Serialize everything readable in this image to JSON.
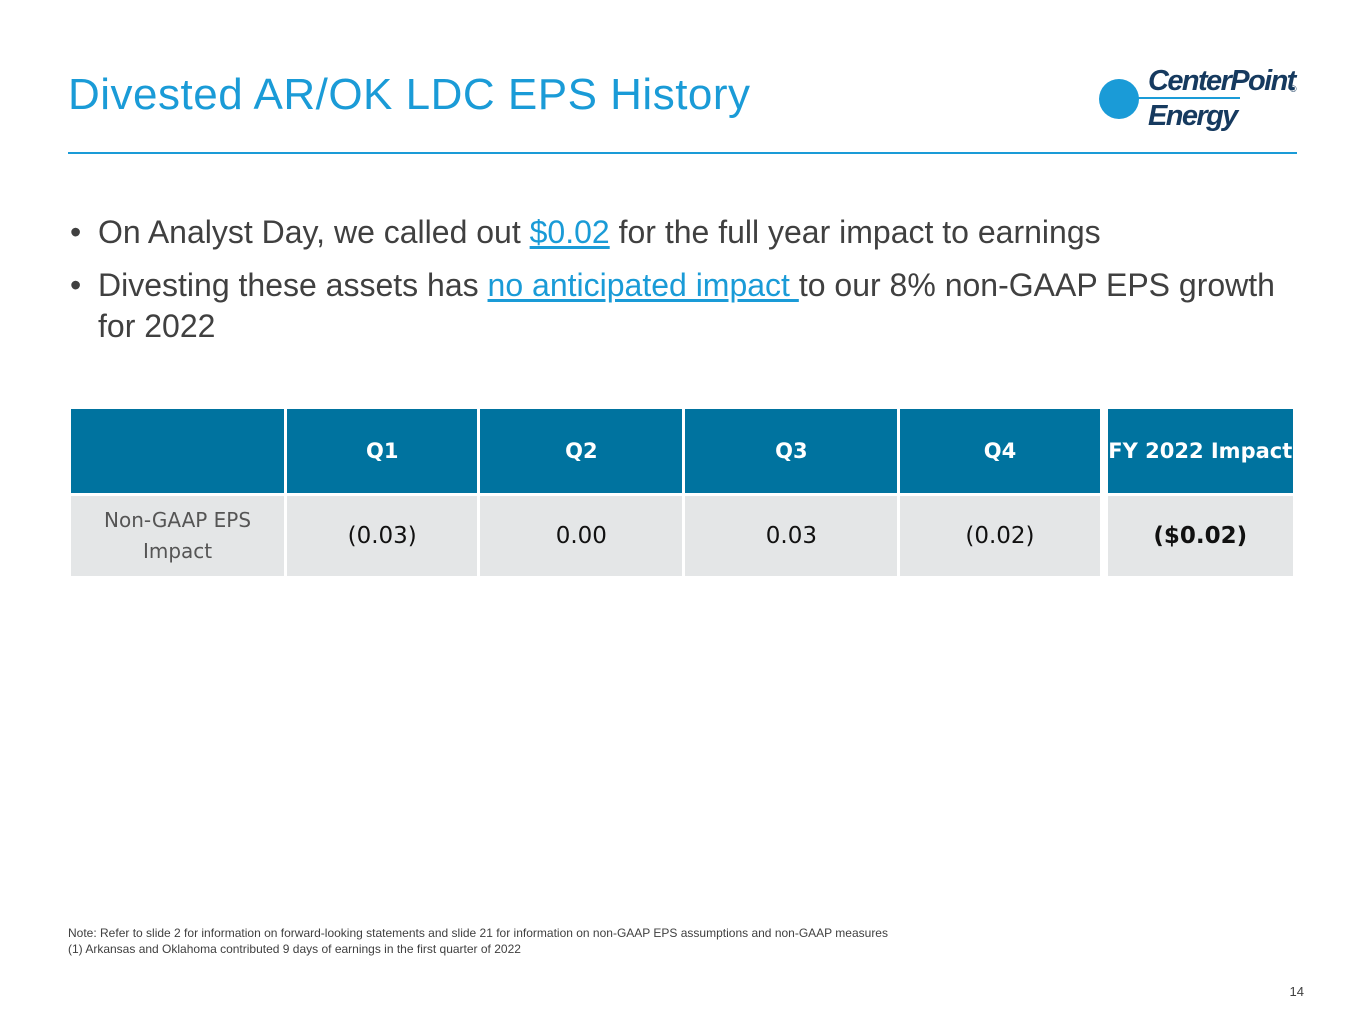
{
  "slide": {
    "title": "Divested AR/OK LDC EPS History",
    "page_number": "14"
  },
  "logo": {
    "line1": "CenterPoint",
    "line2": "Energy",
    "registered": "®"
  },
  "bullets": [
    {
      "before": "On Analyst Day, we called out ",
      "highlight": "$0.02",
      "after": " for the full year impact to earnings"
    },
    {
      "before": "Divesting these assets has ",
      "highlight": "no anticipated impact ",
      "after": "to our 8% non-GAAP EPS growth for 2022"
    }
  ],
  "table": {
    "headers": [
      "",
      "Q1",
      "Q2",
      "Q3",
      "Q4",
      "FY 2022 Impact"
    ],
    "row": {
      "label": "Non-GAAP EPS Impact",
      "values": [
        "(0.03)",
        "0.00",
        "0.03",
        "(0.02)"
      ],
      "total": "($0.02)"
    }
  },
  "notes": [
    "Note: Refer to slide 2 for information on forward-looking statements and slide 21 for information on non-GAAP EPS assumptions and non-GAAP measures",
    "(1) Arkansas and Oklahoma contributed 9 days of earnings in the first quarter of 2022"
  ],
  "colors": {
    "accent": "#1a9bd7",
    "table_header": "#00739f",
    "table_cell": "#e4e6e7"
  }
}
